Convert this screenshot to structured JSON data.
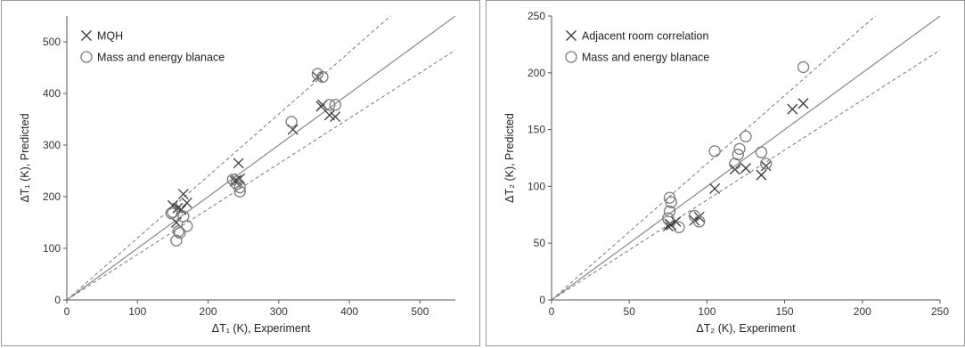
{
  "chart_data": [
    {
      "type": "scatter",
      "title": "",
      "xlabel": "ΔT₁ (K), Experiment",
      "ylabel": "ΔT₁ (K), Predicted",
      "xlim": [
        0,
        550
      ],
      "ylim": [
        0,
        550
      ],
      "xticks": [
        0,
        100,
        200,
        300,
        400,
        500
      ],
      "yticks": [
        0,
        100,
        200,
        300,
        400,
        500
      ],
      "grid": false,
      "legend_position": "top-left",
      "reference_lines": {
        "identity": 1.0,
        "upper": 1.2,
        "lower": 0.88
      },
      "series": [
        {
          "name": "MQH",
          "marker": "x",
          "points": [
            [
              150,
              183
            ],
            [
              157,
              178
            ],
            [
              165,
              205
            ],
            [
              170,
              188
            ],
            [
              162,
              175
            ],
            [
              155,
              150
            ],
            [
              240,
              232
            ],
            [
              243,
              265
            ],
            [
              245,
              235
            ],
            [
              320,
              330
            ],
            [
              360,
              375
            ],
            [
              362,
              378
            ],
            [
              372,
              358
            ],
            [
              380,
              355
            ],
            [
              355,
              432
            ],
            [
              238,
              230
            ]
          ]
        },
        {
          "name": "Mass and energy blanace",
          "marker": "o",
          "points": [
            [
              148,
              168
            ],
            [
              150,
              170
            ],
            [
              165,
              162
            ],
            [
              160,
              130
            ],
            [
              155,
              115
            ],
            [
              170,
              143
            ],
            [
              158,
              133
            ],
            [
              235,
              233
            ],
            [
              240,
              225
            ],
            [
              245,
              210
            ],
            [
              245,
              218
            ],
            [
              318,
              345
            ],
            [
              355,
              438
            ],
            [
              362,
              432
            ],
            [
              372,
              378
            ],
            [
              380,
              378
            ]
          ]
        }
      ]
    },
    {
      "type": "scatter",
      "title": "",
      "xlabel": "ΔT₂ (K), Experiment",
      "ylabel": "ΔT₂ (K), Predicted",
      "xlim": [
        0,
        250
      ],
      "ylim": [
        0,
        250
      ],
      "xticks": [
        0,
        50,
        100,
        150,
        200,
        250
      ],
      "yticks": [
        0,
        50,
        100,
        150,
        200,
        250
      ],
      "grid": false,
      "legend_position": "top-left",
      "reference_lines": {
        "identity": 1.0,
        "upper": 1.2,
        "lower": 0.88
      },
      "series": [
        {
          "name": "Adjacent room correlation",
          "marker": "x",
          "points": [
            [
              75,
              65
            ],
            [
              76,
              67
            ],
            [
              77,
              66
            ],
            [
              80,
              69
            ],
            [
              92,
              70
            ],
            [
              95,
              73
            ],
            [
              105,
              98
            ],
            [
              118,
              115
            ],
            [
              125,
              116
            ],
            [
              135,
              110
            ],
            [
              138,
              118
            ],
            [
              155,
              168
            ],
            [
              162,
              173
            ]
          ]
        },
        {
          "name": "Mass and energy blanace",
          "marker": "o",
          "points": [
            [
              75,
              72
            ],
            [
              76,
              78
            ],
            [
              76,
              90
            ],
            [
              77,
              86
            ],
            [
              82,
              64
            ],
            [
              92,
              74
            ],
            [
              95,
              69
            ],
            [
              105,
              131
            ],
            [
              118,
              120
            ],
            [
              120,
              128
            ],
            [
              121,
              133
            ],
            [
              125,
              144
            ],
            [
              135,
              130
            ],
            [
              138,
              120
            ],
            [
              162,
              205
            ]
          ]
        }
      ]
    }
  ]
}
